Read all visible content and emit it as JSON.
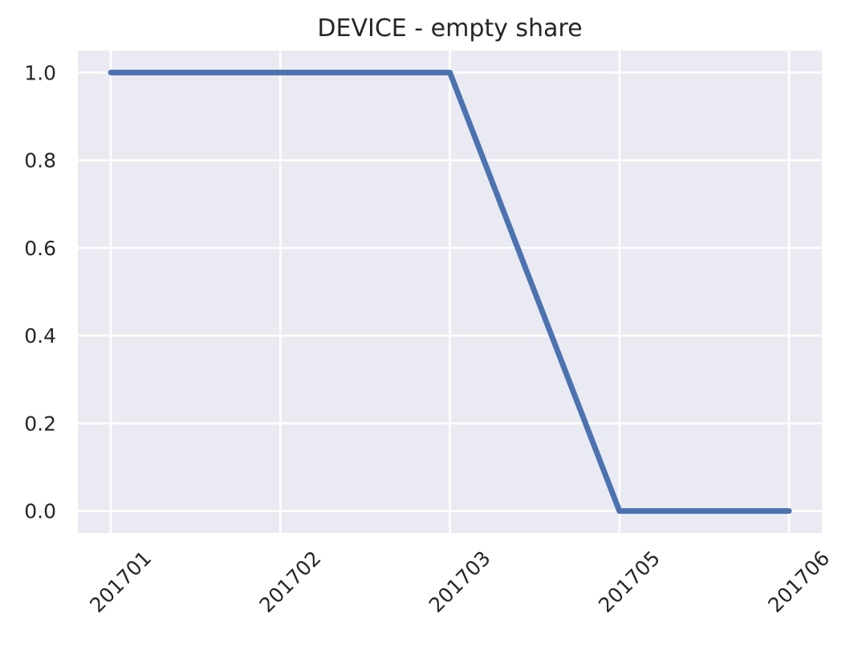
{
  "chart_data": {
    "type": "line",
    "title": "DEVICE - empty share",
    "xlabel": "",
    "ylabel": "",
    "categories": [
      "201701",
      "201702",
      "201703",
      "201705",
      "201706"
    ],
    "series": [
      {
        "values": [
          1.0,
          1.0,
          1.0,
          0.0,
          0.0
        ]
      }
    ],
    "ylim": [
      -0.05,
      1.05
    ],
    "yticks": [
      0.0,
      0.2,
      0.4,
      0.6,
      0.8,
      1.0
    ],
    "ytick_labels": [
      "0.0",
      "0.2",
      "0.4",
      "0.6",
      "0.8",
      "1.0"
    ],
    "grid": true,
    "x_tick_rotation_deg": 45,
    "colors": {
      "background": "#eaeaf2",
      "grid": "#ffffff",
      "line": "#4c72b0"
    }
  }
}
